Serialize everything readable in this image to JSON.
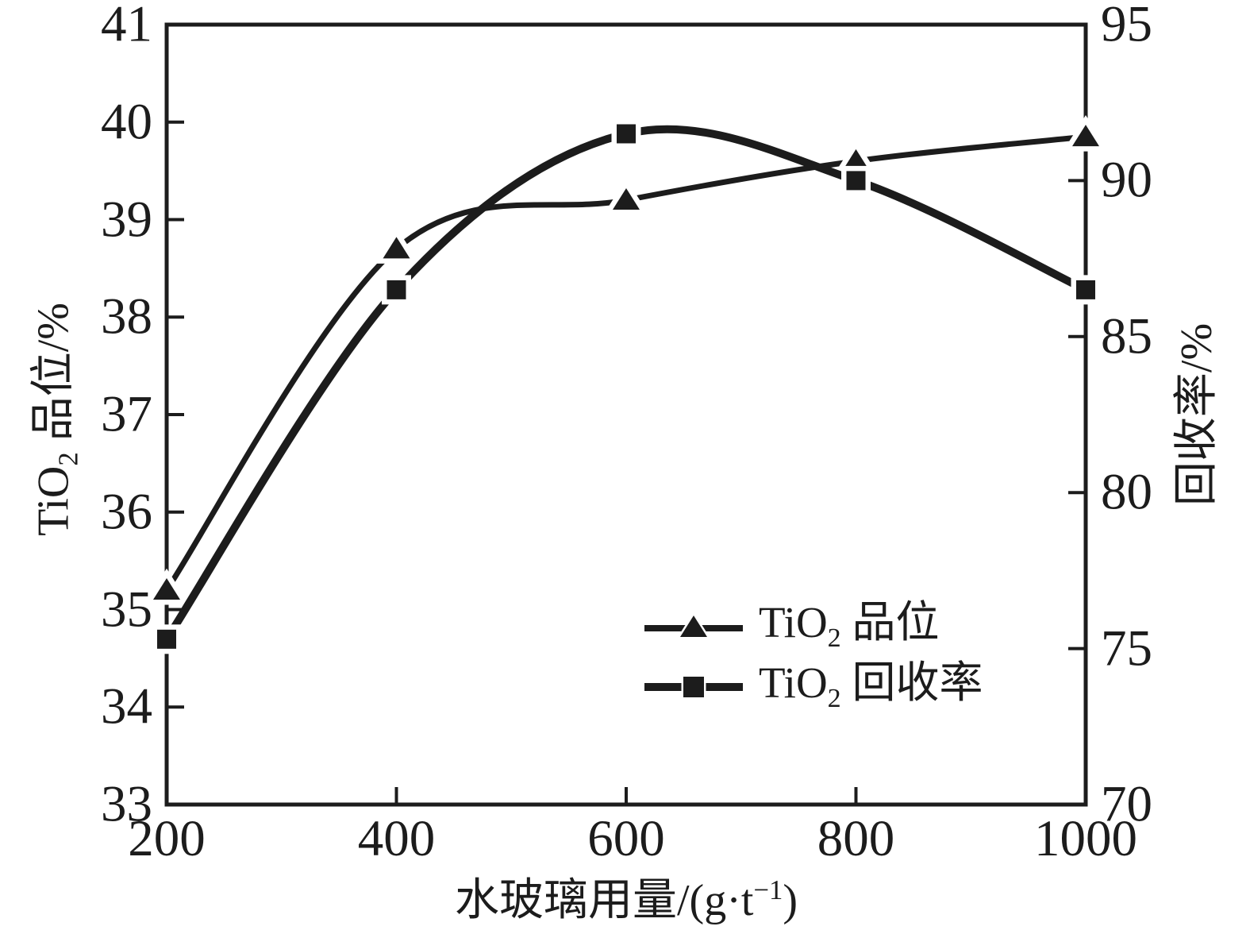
{
  "chart_data": {
    "type": "line",
    "title": "",
    "x": [
      200,
      400,
      600,
      800,
      1000
    ],
    "series": [
      {
        "name": "TiO2 品位",
        "marker": "triangle",
        "axis": "left",
        "values": [
          35.2,
          38.7,
          39.2,
          39.6,
          39.85
        ],
        "line_width": 7
      },
      {
        "name": "TiO2 回收率",
        "marker": "square",
        "axis": "right",
        "values": [
          75.3,
          86.5,
          91.5,
          90.0,
          86.5
        ],
        "line_width": 10
      }
    ],
    "xlabel": "水玻璃用量/(g·t−1)",
    "ylabel_left": "TiO2 品位/%",
    "ylabel_right": "回收率/%",
    "xlim": [
      200,
      1000
    ],
    "ylim_left": [
      33,
      41
    ],
    "ylim_right": [
      70,
      95
    ],
    "xticks": [
      "200",
      "400",
      "600",
      "800",
      "1000"
    ],
    "yticks_left": [
      "41",
      "40",
      "39",
      "38",
      "37",
      "36",
      "35",
      "34",
      "33"
    ],
    "yticks_left_values": [
      41,
      40,
      39,
      38,
      37,
      36,
      35,
      34,
      33
    ],
    "yticks_right": [
      "95",
      "90",
      "85",
      "80",
      "75",
      "70"
    ],
    "yticks_right_values": [
      95,
      90,
      85,
      80,
      75,
      70
    ],
    "grid": false,
    "legend_position": "inside lower-right",
    "line_color": "#1c1c1c",
    "axis_color": "#1c1c1c"
  },
  "labels": {
    "ylabel_left_parts": {
      "pre": "TiO",
      "sub": "2",
      "post": " 品位/%"
    },
    "ylabel_right_text": "回收率/%",
    "xlabel_parts": {
      "pre": "水玻璃用量/(g·t",
      "sup": "−1",
      "post": ")"
    }
  },
  "legend": {
    "items": [
      {
        "marker": "triangle",
        "pre": "TiO",
        "sub": "2",
        "post": " 品位"
      },
      {
        "marker": "square",
        "pre": "TiO",
        "sub": "2",
        "post": " 回收率"
      }
    ]
  }
}
